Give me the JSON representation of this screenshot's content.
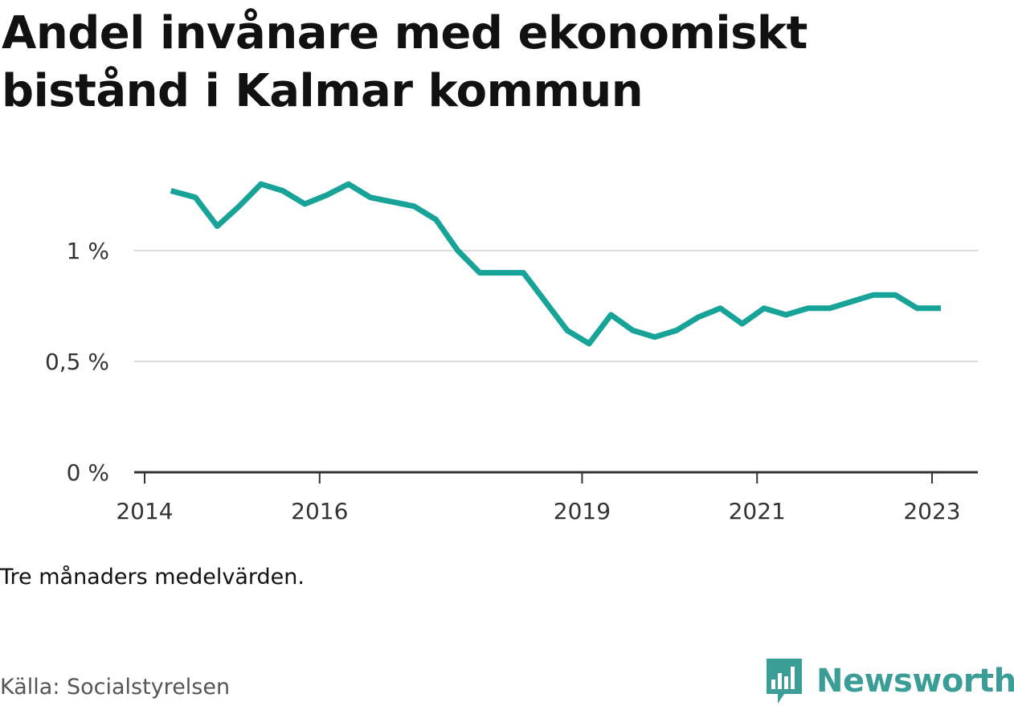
{
  "title": "Andel invånare med ekonomiskt bistånd i Kalmar kommun",
  "note": "Tre månaders medelvärden.",
  "source": "Källa: Socialstyrelsen",
  "brand": {
    "name": "Newsworthy",
    "icon": "newsworthy-logo-icon",
    "color": "#3a9e96"
  },
  "chart_data": {
    "type": "line",
    "title": "Andel invånare med ekonomiskt bistånd i Kalmar kommun",
    "xlabel": "",
    "ylabel": "",
    "xlim": [
      2014,
      2023.4
    ],
    "ylim": [
      0,
      1.3
    ],
    "grid": true,
    "yticks": [
      {
        "value": 0,
        "label": "0 %"
      },
      {
        "value": 0.5,
        "label": "0,5 %"
      },
      {
        "value": 1,
        "label": "1 %"
      }
    ],
    "xticks": [
      {
        "value": 2014,
        "label": "2014"
      },
      {
        "value": 2016,
        "label": "2016"
      },
      {
        "value": 2019,
        "label": "2019"
      },
      {
        "value": 2021,
        "label": "2021"
      },
      {
        "value": 2023,
        "label": "2023"
      }
    ],
    "series": [
      {
        "color": "#17a398",
        "x": [
          2014.3,
          2014.58,
          2014.83,
          2015.08,
          2015.33,
          2015.58,
          2015.83,
          2016.08,
          2016.33,
          2016.58,
          2016.83,
          2017.08,
          2017.33,
          2017.58,
          2017.83,
          2018.08,
          2018.33,
          2018.58,
          2018.83,
          2019.08,
          2019.33,
          2019.58,
          2019.83,
          2020.08,
          2020.33,
          2020.58,
          2020.83,
          2021.08,
          2021.33,
          2021.58,
          2021.83,
          2022.08,
          2022.33,
          2022.58,
          2022.83,
          2023.1
        ],
        "values": [
          1.27,
          1.24,
          1.11,
          1.2,
          1.3,
          1.27,
          1.21,
          1.25,
          1.3,
          1.24,
          1.22,
          1.2,
          1.14,
          1.0,
          0.9,
          0.9,
          0.9,
          0.77,
          0.64,
          0.58,
          0.71,
          0.64,
          0.61,
          0.64,
          0.7,
          0.74,
          0.67,
          0.74,
          0.71,
          0.74,
          0.74,
          0.77,
          0.8,
          0.8,
          0.74,
          0.74
        ]
      }
    ]
  }
}
